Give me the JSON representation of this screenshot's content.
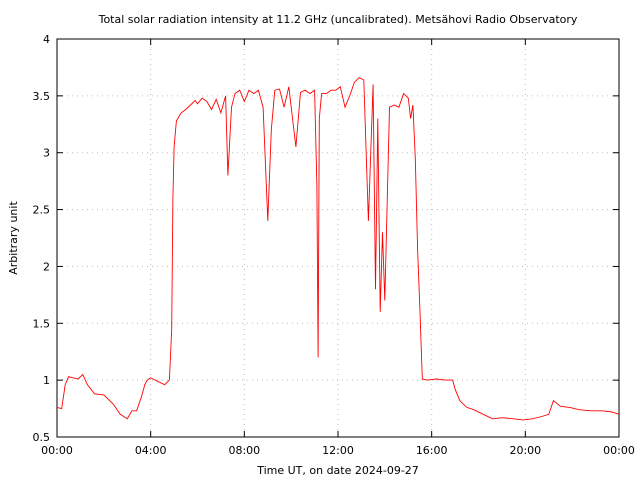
{
  "chart_data": {
    "type": "line",
    "title": "Total solar radiation intensity at 11.2 GHz (uncalibrated). Metsähovi Radio Observatory",
    "xlabel": "Time UT, on date 2024-09-27",
    "ylabel": "Arbitrary unit",
    "xlim": [
      "00:00",
      "24:00"
    ],
    "ylim": [
      0.5,
      4
    ],
    "xticks": [
      "00:00",
      "04:00",
      "08:00",
      "12:00",
      "16:00",
      "20:00",
      "00:00"
    ],
    "yticks": [
      "0.5",
      "1",
      "1.5",
      "2",
      "2.5",
      "3",
      "3.5",
      "4"
    ],
    "grid": true,
    "series": [
      {
        "color": "#ff0000",
        "x_hours": [
          0,
          0.2,
          0.35,
          0.5,
          0.7,
          0.9,
          1.1,
          1.3,
          1.6,
          2.0,
          2.4,
          2.7,
          3.0,
          3.2,
          3.4,
          3.6,
          3.75,
          3.85,
          4.0,
          4.3,
          4.6,
          4.8,
          4.9,
          4.95,
          5.0,
          5.1,
          5.3,
          5.5,
          5.7,
          5.9,
          6.0,
          6.2,
          6.4,
          6.6,
          6.8,
          7.0,
          7.2,
          7.3,
          7.45,
          7.6,
          7.8,
          8.0,
          8.2,
          8.4,
          8.6,
          8.8,
          9.0,
          9.15,
          9.3,
          9.5,
          9.7,
          9.9,
          10.2,
          10.4,
          10.6,
          10.8,
          11.0,
          11.1,
          11.15,
          11.2,
          11.3,
          11.5,
          11.7,
          11.9,
          12.1,
          12.3,
          12.5,
          12.7,
          12.9,
          13.1,
          13.3,
          13.5,
          13.6,
          13.7,
          13.8,
          13.9,
          14.0,
          14.2,
          14.4,
          14.6,
          14.8,
          15.0,
          15.1,
          15.2,
          15.3,
          15.4,
          15.5,
          15.6,
          15.8,
          16.2,
          16.6,
          16.9,
          17.0,
          17.2,
          17.5,
          17.8,
          18.2,
          18.6,
          19.0,
          19.5,
          19.9,
          20.3,
          20.7,
          21.0,
          21.2,
          21.5,
          21.9,
          22.3,
          22.8,
          23.3,
          23.7,
          24.0
        ],
        "values": [
          0.76,
          0.75,
          0.96,
          1.03,
          1.02,
          1.01,
          1.05,
          0.96,
          0.88,
          0.87,
          0.79,
          0.7,
          0.66,
          0.73,
          0.73,
          0.85,
          0.96,
          1.0,
          1.02,
          0.99,
          0.96,
          1.0,
          1.45,
          2.6,
          3.05,
          3.28,
          3.35,
          3.38,
          3.42,
          3.46,
          3.43,
          3.48,
          3.45,
          3.38,
          3.47,
          3.35,
          3.5,
          2.8,
          3.4,
          3.52,
          3.55,
          3.45,
          3.55,
          3.52,
          3.55,
          3.4,
          2.4,
          3.2,
          3.55,
          3.56,
          3.4,
          3.58,
          3.05,
          3.53,
          3.55,
          3.52,
          3.55,
          2.7,
          1.2,
          3.3,
          3.52,
          3.52,
          3.55,
          3.55,
          3.58,
          3.4,
          3.5,
          3.62,
          3.66,
          3.64,
          2.4,
          3.6,
          1.8,
          3.3,
          1.6,
          2.3,
          1.7,
          3.4,
          3.42,
          3.4,
          3.52,
          3.48,
          3.3,
          3.42,
          2.95,
          2.15,
          1.6,
          1.01,
          1.0,
          1.01,
          1.0,
          1.0,
          0.92,
          0.82,
          0.76,
          0.74,
          0.7,
          0.66,
          0.67,
          0.66,
          0.65,
          0.66,
          0.68,
          0.7,
          0.82,
          0.77,
          0.76,
          0.74,
          0.73,
          0.73,
          0.72,
          0.7
        ]
      }
    ]
  }
}
